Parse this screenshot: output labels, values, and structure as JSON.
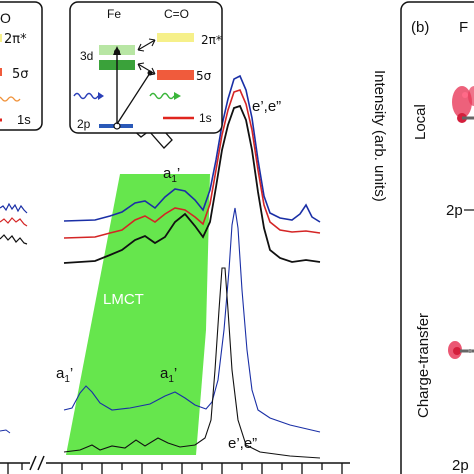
{
  "figure": {
    "panel_b_label": "(b)",
    "panel_b_title_fragment": "F",
    "ylabel": "Intensity (arb. units)",
    "lmct_label": "LMCT",
    "peak_labels": {
      "eprime_upper": "e’,e”",
      "eprime_lower": "e’,e”",
      "a1_upper": "a",
      "a1_upper_sub": "1",
      "a1_upper_prime": "’",
      "a1_lower_left": "a",
      "a1_lower_left_sub": "1",
      "a1_lower_left_prime": "’",
      "a1_lower_right": "a",
      "a1_lower_right_sub": "1",
      "a1_lower_right_prime": "’"
    },
    "inset_left": {
      "fragment_o": "O",
      "level_2pi": "2π*",
      "level_5sigma": "5σ",
      "level_1s": "1s"
    },
    "inset_right": {
      "title_fe": "Fe",
      "title_co": "C=O",
      "level_3d": "3d",
      "level_2p": "2p",
      "level_2pi": "2π*",
      "level_5sigma": "5σ",
      "level_1s": "1s"
    },
    "panel_b": {
      "row1_label": "Local",
      "row2_label": "Charge-transfer",
      "fragment_1": "2p",
      "fragment_2": "2p"
    },
    "colors": {
      "blue": "#1a2fa6",
      "red": "#d42525",
      "black": "#111111",
      "lmct_green": "#66e64d",
      "level_yellow": "#f6f08a",
      "level_orange": "#f05b3c",
      "level_red": "#e0251e",
      "level_green": "#3aa23a",
      "level_blue": "#2a59b8",
      "wave_orange": "#f0923a",
      "molecule_pink": "#e8395a"
    },
    "icons": [
      "break-mark-icon",
      "transition-arrow-icon",
      "wavy-photon-icon",
      "callout-arrow-icon",
      "molecule-icon"
    ]
  }
}
